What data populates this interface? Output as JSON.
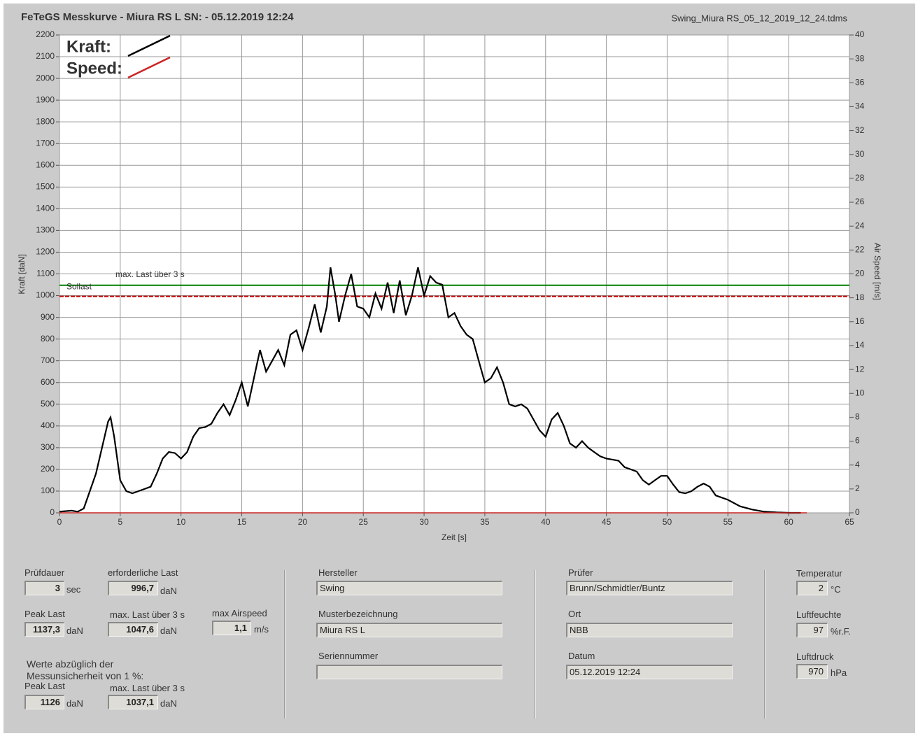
{
  "header": {
    "title": "FeTeGS Messkurve - Miura RS L  SN:  - 05.12.2019 12:24",
    "file": "Swing_Miura RS_05_12_2019_12_24.tdms"
  },
  "chart_data": {
    "type": "line",
    "xlabel": "Zeit [s]",
    "ylabel": "Kraft [daN]",
    "y2label": "Air Speed [m/s]",
    "xlim": [
      0,
      65
    ],
    "xticks": [
      0,
      5,
      10,
      15,
      20,
      25,
      30,
      35,
      40,
      45,
      50,
      55,
      60,
      65
    ],
    "ylim": [
      0,
      2200
    ],
    "yticks": [
      0,
      100,
      200,
      300,
      400,
      500,
      600,
      700,
      800,
      900,
      1000,
      1100,
      1200,
      1300,
      1400,
      1500,
      1600,
      1700,
      1800,
      1900,
      2000,
      2100,
      2200
    ],
    "y2lim": [
      0,
      40
    ],
    "y2ticks": [
      0,
      2,
      4,
      6,
      8,
      10,
      12,
      14,
      16,
      18,
      20,
      22,
      24,
      26,
      28,
      30,
      32,
      34,
      36,
      38,
      40
    ],
    "grid": true,
    "legend": "top-left",
    "series": [
      {
        "name": "Kraft:",
        "color": "#000000",
        "x": [
          0,
          1,
          1.5,
          2,
          2.5,
          3,
          3.5,
          4,
          4.2,
          4.5,
          5,
          5.5,
          6,
          6.5,
          7,
          7.5,
          8,
          8.5,
          9,
          9.5,
          10,
          10.5,
          11,
          11.5,
          12,
          12.5,
          13,
          13.5,
          14,
          14.5,
          15,
          15.5,
          16,
          16.5,
          17,
          17.5,
          18,
          18.5,
          19,
          19.5,
          20,
          20.5,
          21,
          21.5,
          22,
          22.3,
          22.7,
          23,
          23.5,
          24,
          24.5,
          25,
          25.5,
          26,
          26.5,
          27,
          27.5,
          28,
          28.5,
          29,
          29.5,
          30,
          30.5,
          31,
          31.5,
          32,
          32.5,
          33,
          33.5,
          34,
          34.5,
          35,
          35.5,
          36,
          36.5,
          37,
          37.5,
          38,
          38.5,
          39,
          39.5,
          40,
          40.5,
          41,
          41.5,
          42,
          42.5,
          43,
          43.5,
          44,
          44.5,
          45,
          45.5,
          46,
          46.5,
          47,
          47.5,
          48,
          48.5,
          49,
          49.5,
          50,
          50.5,
          51,
          51.5,
          52,
          52.5,
          53,
          53.5,
          54,
          55,
          56,
          57,
          58,
          59,
          60,
          61
        ],
        "values": [
          5,
          10,
          5,
          20,
          100,
          180,
          300,
          420,
          440,
          350,
          150,
          100,
          90,
          100,
          110,
          120,
          180,
          250,
          280,
          275,
          250,
          280,
          350,
          390,
          395,
          410,
          460,
          500,
          450,
          520,
          600,
          490,
          620,
          750,
          650,
          700,
          750,
          680,
          820,
          840,
          750,
          850,
          960,
          830,
          950,
          1130,
          1000,
          880,
          1000,
          1100,
          950,
          940,
          900,
          1010,
          940,
          1060,
          920,
          1070,
          910,
          1000,
          1130,
          1000,
          1090,
          1060,
          1050,
          900,
          920,
          860,
          820,
          800,
          700,
          600,
          620,
          670,
          600,
          500,
          490,
          500,
          480,
          430,
          380,
          350,
          430,
          460,
          400,
          320,
          300,
          330,
          300,
          280,
          260,
          250,
          245,
          240,
          210,
          200,
          190,
          150,
          130,
          150,
          170,
          170,
          130,
          95,
          90,
          100,
          120,
          135,
          120,
          80,
          60,
          30,
          15,
          5,
          2,
          0,
          0
        ]
      },
      {
        "name": "Speed:",
        "color": "#cc2222",
        "axis": "y2",
        "x": [
          0,
          61.5
        ],
        "values": [
          0,
          0
        ]
      }
    ],
    "reference_lines": [
      {
        "label": "Sollast",
        "value": 996.7,
        "color": "#c00000"
      },
      {
        "label": "max. Last über  3 s",
        "value": 1047.6,
        "color": "#008000"
      }
    ]
  },
  "results": {
    "pruefdauer": {
      "label": "Prüfdauer",
      "value": "3",
      "unit": "sec"
    },
    "erforderliche_last": {
      "label": "erforderliche Last",
      "value": "996,7",
      "unit": "daN"
    },
    "peak_last": {
      "label": "Peak Last",
      "value": "1137,3",
      "unit": "daN"
    },
    "max_last": {
      "label": "max. Last über  3 s",
      "value": "1047,6",
      "unit": "daN"
    },
    "max_airspeed": {
      "label": "max Airspeed",
      "value": "1,1",
      "unit": "m/s"
    },
    "note": [
      "Werte abzüglich der",
      "Messunsicherheit von 1  %:"
    ],
    "peak_last_corr": {
      "label": "Peak Last",
      "value": "1126",
      "unit": "daN"
    },
    "max_last_corr": {
      "label": "max. Last über  3 s",
      "value": "1037,1",
      "unit": "daN"
    }
  },
  "glider": {
    "hersteller": {
      "label": "Hersteller",
      "value": "Swing"
    },
    "muster": {
      "label": "Musterbezeichnung",
      "value": "Miura RS L"
    },
    "serie": {
      "label": "Seriennummer"
    }
  },
  "test": {
    "pruefer": {
      "label": "Prüfer",
      "value": "Brunn/Schmidtler/Buntz"
    },
    "ort": {
      "label": "Ort",
      "value": "NBB"
    },
    "datum": {
      "label": "Datum",
      "value": "05.12.2019 12:24"
    }
  },
  "conditions": {
    "temperatur": {
      "label": "Temperatur",
      "value": "2",
      "unit": "°C"
    },
    "luftfeuchte": {
      "label": "Luftfeuchte",
      "value": "97",
      "unit": "%r.F."
    },
    "luftdruck": {
      "label": "Luftdruck",
      "value": "970",
      "unit": "hPa"
    }
  }
}
